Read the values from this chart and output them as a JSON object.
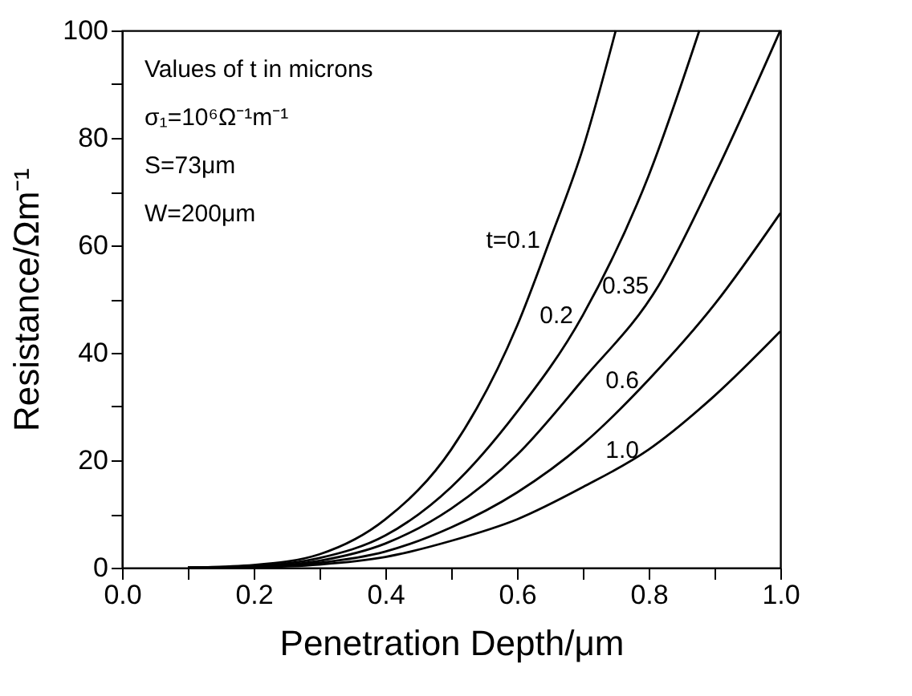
{
  "chart_data": {
    "type": "line",
    "xlabel": "Penetration Depth/μm",
    "ylabel": "Resistance/Ωm⁻¹",
    "annotations": [
      "Values of t in microns",
      "σ₁=10⁶Ω⁻¹m⁻¹",
      "S=73μm",
      "W=200μm"
    ],
    "xlim": [
      0,
      1
    ],
    "ylim": [
      0,
      100
    ],
    "xticks": [
      {
        "value": 0,
        "label": "0.0"
      },
      {
        "value": 0.1,
        "label": null
      },
      {
        "value": 0.2,
        "label": "0.2"
      },
      {
        "value": 0.3,
        "label": null
      },
      {
        "value": 0.4,
        "label": "0.4"
      },
      {
        "value": 0.5,
        "label": null
      },
      {
        "value": 0.6,
        "label": "0.6"
      },
      {
        "value": 0.7,
        "label": null
      },
      {
        "value": 0.8,
        "label": "0.8"
      },
      {
        "value": 0.9,
        "label": null
      },
      {
        "value": 1,
        "label": "1.0"
      }
    ],
    "yticks": [
      0,
      {
        "value": 10,
        "label": null
      },
      20,
      {
        "value": 30,
        "label": null
      },
      40,
      {
        "value": 50,
        "label": null
      },
      60,
      {
        "value": 70,
        "label": null
      },
      80,
      {
        "value": 90,
        "label": null
      },
      100
    ],
    "grid": false,
    "legend": false,
    "marker": "none",
    "line_style": "solid",
    "series": [
      {
        "name": "t=0.1",
        "color": "#000000",
        "x": [
          0.1,
          0.2,
          0.3,
          0.4,
          0.5,
          0.6,
          0.65,
          0.7,
          0.75
        ],
        "values": [
          0,
          0.5,
          2.5,
          9,
          22,
          45,
          61,
          78,
          100
        ]
      },
      {
        "name": "0.2",
        "color": "#000000",
        "x": [
          0.1,
          0.2,
          0.3,
          0.4,
          0.5,
          0.6,
          0.7,
          0.8,
          0.877
        ],
        "values": [
          0,
          0.3,
          1.8,
          6,
          15,
          29,
          47,
          73,
          100
        ]
      },
      {
        "name": "0.35",
        "color": "#000000",
        "x": [
          0.1,
          0.2,
          0.3,
          0.4,
          0.5,
          0.6,
          0.7,
          0.815,
          0.9,
          1.0
        ],
        "values": [
          0,
          0.2,
          1.3,
          4.5,
          11,
          21,
          35,
          52.5,
          73,
          100
        ]
      },
      {
        "name": "0.6",
        "color": "#000000",
        "x": [
          0.1,
          0.2,
          0.3,
          0.4,
          0.5,
          0.6,
          0.7,
          0.8,
          0.9,
          1.0
        ],
        "values": [
          0,
          0.1,
          0.9,
          3,
          7.5,
          14,
          23,
          35,
          49,
          66
        ]
      },
      {
        "name": "1.0",
        "color": "#000000",
        "x": [
          0.1,
          0.2,
          0.3,
          0.4,
          0.5,
          0.6,
          0.7,
          0.8,
          0.9,
          1.0
        ],
        "values": [
          0,
          0.1,
          0.6,
          2,
          5,
          9,
          15,
          22,
          32,
          44
        ]
      }
    ]
  }
}
